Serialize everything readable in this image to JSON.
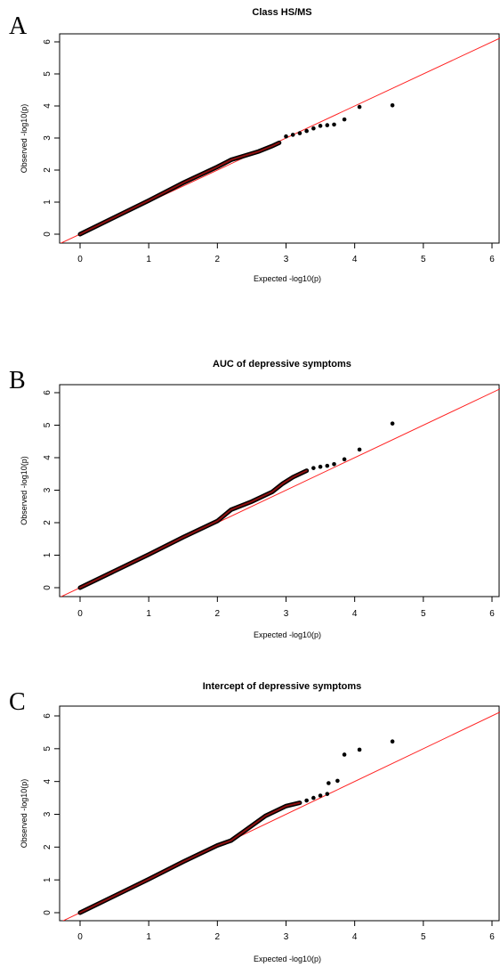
{
  "chart_data": [
    {
      "panel": "A",
      "type": "scatter",
      "title": "Class HS/MS",
      "xlabel": "Expected  -log10(p)",
      "ylabel": "Observed  -log10(p)",
      "xlim": [
        0,
        6
      ],
      "ylim": [
        0,
        6
      ],
      "xticks": [
        "0",
        "1",
        "2",
        "3",
        "4",
        "5",
        "6"
      ],
      "yticks": [
        "0",
        "1",
        "2",
        "3",
        "4",
        "5",
        "6"
      ],
      "reference_line": {
        "slope": 1,
        "intercept": 0,
        "color": "#ff2020"
      },
      "bulk": [
        [
          0,
          0
        ],
        [
          1,
          1.05
        ],
        [
          1.5,
          1.6
        ],
        [
          2,
          2.1
        ],
        [
          2.2,
          2.32
        ],
        [
          2.6,
          2.58
        ],
        [
          2.8,
          2.75
        ],
        [
          2.9,
          2.85
        ]
      ],
      "points": [
        [
          3.0,
          3.05
        ],
        [
          3.1,
          3.1
        ],
        [
          3.2,
          3.15
        ],
        [
          3.3,
          3.22
        ],
        [
          3.4,
          3.3
        ],
        [
          3.5,
          3.38
        ],
        [
          3.6,
          3.4
        ],
        [
          3.7,
          3.42
        ],
        [
          3.85,
          3.58
        ],
        [
          4.07,
          3.97
        ],
        [
          4.55,
          4.02
        ]
      ]
    },
    {
      "panel": "B",
      "type": "scatter",
      "title": "AUC of depressive symptoms",
      "xlabel": "Expected  -log10(p)",
      "ylabel": "Observed  -log10(p)",
      "xlim": [
        0,
        6
      ],
      "ylim": [
        0,
        6
      ],
      "xticks": [
        "0",
        "1",
        "2",
        "3",
        "4",
        "5",
        "6"
      ],
      "yticks": [
        "0",
        "1",
        "2",
        "3",
        "4",
        "5",
        "6"
      ],
      "reference_line": {
        "slope": 1,
        "intercept": 0,
        "color": "#ff2020"
      },
      "bulk": [
        [
          0,
          0
        ],
        [
          1,
          1.02
        ],
        [
          1.5,
          1.55
        ],
        [
          2,
          2.05
        ],
        [
          2.2,
          2.4
        ],
        [
          2.5,
          2.65
        ],
        [
          2.8,
          2.95
        ],
        [
          2.95,
          3.2
        ],
        [
          3.1,
          3.4
        ],
        [
          3.3,
          3.6
        ]
      ],
      "points": [
        [
          3.4,
          3.68
        ],
        [
          3.5,
          3.72
        ],
        [
          3.6,
          3.75
        ],
        [
          3.7,
          3.8
        ],
        [
          3.85,
          3.95
        ],
        [
          4.07,
          4.25
        ],
        [
          4.55,
          5.05
        ]
      ]
    },
    {
      "panel": "C",
      "type": "scatter",
      "title": "Intercept of depressive symptoms",
      "xlabel": "Expected  -log10(p)",
      "ylabel": "Observed  -log10(p)",
      "xlim": [
        0,
        6
      ],
      "ylim": [
        0,
        6
      ],
      "xticks": [
        "0",
        "1",
        "2",
        "3",
        "4",
        "5",
        "6"
      ],
      "yticks": [
        "0",
        "1",
        "2",
        "3",
        "4",
        "5",
        "6"
      ],
      "reference_line": {
        "slope": 1,
        "intercept": 0,
        "color": "#ff2020"
      },
      "bulk": [
        [
          0,
          0
        ],
        [
          1,
          1.02
        ],
        [
          1.5,
          1.55
        ],
        [
          2,
          2.05
        ],
        [
          2.2,
          2.2
        ],
        [
          2.4,
          2.5
        ],
        [
          2.7,
          2.95
        ],
        [
          3.0,
          3.25
        ],
        [
          3.2,
          3.35
        ]
      ],
      "points": [
        [
          3.3,
          3.42
        ],
        [
          3.4,
          3.5
        ],
        [
          3.5,
          3.57
        ],
        [
          3.6,
          3.62
        ],
        [
          3.62,
          3.95
        ],
        [
          3.75,
          4.02
        ],
        [
          3.85,
          4.82
        ],
        [
          4.07,
          4.97
        ],
        [
          4.55,
          5.22
        ]
      ]
    }
  ]
}
